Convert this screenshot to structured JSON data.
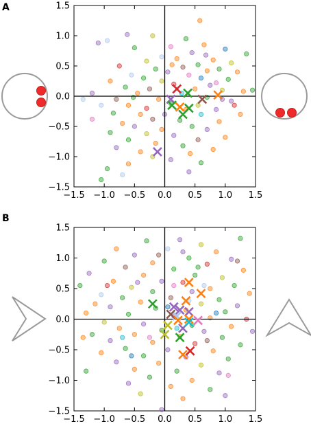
{
  "palette": [
    "#1f77b4",
    "#ff7f0e",
    "#2ca02c",
    "#d62728",
    "#9467bd",
    "#8c564b",
    "#e377c2",
    "#bcbd22",
    "#17becf",
    "#aec7e8"
  ],
  "icons": {
    "panelA_left": "circle-with-two-dots-vertical-icon",
    "panelA_right": "circle-with-two-dots-horizontal-icon",
    "panelB_left": "right-pointing-chevron-arrow-icon",
    "panelB_right": "up-pointing-chevron-arrow-icon"
  },
  "chart_data": [
    {
      "panel_label": "A",
      "type": "scatter",
      "title": "",
      "xlabel": "",
      "ylabel": "",
      "xlim": [
        -1.5,
        1.5
      ],
      "ylim": [
        -1.5,
        1.5
      ],
      "xticks": [
        "−1.5",
        "−1.0",
        "−0.5",
        "0.0",
        "0.5",
        "1.0",
        "1.5"
      ],
      "yticks": [
        "1.5",
        "1.0",
        "0.5",
        "0.0",
        "−0.5",
        "−1.0",
        "−1.5"
      ],
      "grid": false,
      "points": [
        {
          "x": -0.62,
          "y": 1.02,
          "c": 4
        },
        {
          "x": -0.2,
          "y": 1.0,
          "c": 7
        },
        {
          "x": 0.58,
          "y": 1.25,
          "c": 1
        },
        {
          "x": 0.35,
          "y": 0.95,
          "c": 2
        },
        {
          "x": -0.95,
          "y": 0.92,
          "c": 9
        },
        {
          "x": -1.1,
          "y": 0.88,
          "c": 4
        },
        {
          "x": -0.5,
          "y": 0.8,
          "c": 2
        },
        {
          "x": 0.1,
          "y": 0.82,
          "c": 6
        },
        {
          "x": 0.65,
          "y": 0.85,
          "c": 1
        },
        {
          "x": 1.0,
          "y": 0.78,
          "c": 0
        },
        {
          "x": 1.35,
          "y": 0.7,
          "c": 2
        },
        {
          "x": 0.45,
          "y": 0.72,
          "c": 4
        },
        {
          "x": 0.2,
          "y": 0.62,
          "c": 1
        },
        {
          "x": -0.3,
          "y": 0.58,
          "c": 7
        },
        {
          "x": 0.8,
          "y": 0.6,
          "c": 1
        },
        {
          "x": 1.1,
          "y": 0.55,
          "c": 7
        },
        {
          "x": 0.55,
          "y": 0.52,
          "c": 2
        },
        {
          "x": -0.75,
          "y": 0.5,
          "c": 3
        },
        {
          "x": 0.3,
          "y": 0.48,
          "c": 5
        },
        {
          "x": 0.9,
          "y": 0.45,
          "c": 2
        },
        {
          "x": 0.7,
          "y": 0.42,
          "c": 1
        },
        {
          "x": -0.15,
          "y": 0.45,
          "c": 2
        },
        {
          "x": 0.05,
          "y": 0.4,
          "c": 4
        },
        {
          "x": 1.2,
          "y": 0.4,
          "c": 1
        },
        {
          "x": -0.55,
          "y": 0.35,
          "c": 9
        },
        {
          "x": 0.4,
          "y": 0.35,
          "c": 6
        },
        {
          "x": -0.35,
          "y": 0.3,
          "c": 2
        },
        {
          "x": 0.6,
          "y": 0.3,
          "c": 0
        },
        {
          "x": 1.05,
          "y": 0.28,
          "c": 2
        },
        {
          "x": -0.9,
          "y": 0.25,
          "c": 1
        },
        {
          "x": -0.05,
          "y": 0.25,
          "c": 7
        },
        {
          "x": 0.15,
          "y": 0.2,
          "c": 3
        },
        {
          "x": 0.75,
          "y": 0.18,
          "c": 4
        },
        {
          "x": -0.65,
          "y": 0.15,
          "c": 2
        },
        {
          "x": -0.25,
          "y": 0.12,
          "c": 5
        },
        {
          "x": 0.5,
          "y": 0.12,
          "c": 1
        },
        {
          "x": 0.95,
          "y": 0.1,
          "c": 7
        },
        {
          "x": 1.3,
          "y": 0.08,
          "c": 1
        },
        {
          "x": -1.2,
          "y": 0.05,
          "c": 4
        },
        {
          "x": -0.45,
          "y": 0.05,
          "c": 1
        },
        {
          "x": 0.28,
          "y": 0.05,
          "c": 8
        },
        {
          "x": 0.7,
          "y": -0.02,
          "c": 2
        },
        {
          "x": -0.8,
          "y": -0.05,
          "c": 5
        },
        {
          "x": -0.1,
          "y": -0.05,
          "c": 1
        },
        {
          "x": 1.1,
          "y": -0.08,
          "c": 4
        },
        {
          "x": -1.05,
          "y": -0.15,
          "c": 9
        },
        {
          "x": -0.6,
          "y": -0.15,
          "c": 1
        },
        {
          "x": 0.1,
          "y": -0.12,
          "c": 2
        },
        {
          "x": 0.55,
          "y": -0.15,
          "c": 7
        },
        {
          "x": -0.3,
          "y": -0.2,
          "c": 3
        },
        {
          "x": 0.35,
          "y": -0.22,
          "c": 1
        },
        {
          "x": 0.85,
          "y": -0.22,
          "c": 4
        },
        {
          "x": -0.85,
          "y": -0.28,
          "c": 2
        },
        {
          "x": -0.4,
          "y": -0.3,
          "c": 1
        },
        {
          "x": 0.0,
          "y": -0.3,
          "c": 4
        },
        {
          "x": 0.6,
          "y": -0.3,
          "c": 8
        },
        {
          "x": 1.25,
          "y": -0.3,
          "c": 1
        },
        {
          "x": -1.2,
          "y": -0.38,
          "c": 6
        },
        {
          "x": -0.2,
          "y": -0.38,
          "c": 5
        },
        {
          "x": 0.25,
          "y": -0.4,
          "c": 2
        },
        {
          "x": 0.9,
          "y": -0.42,
          "c": 1
        },
        {
          "x": -0.7,
          "y": -0.45,
          "c": 1
        },
        {
          "x": -0.5,
          "y": -0.5,
          "c": 4
        },
        {
          "x": 0.45,
          "y": -0.5,
          "c": 2
        },
        {
          "x": -0.05,
          "y": -0.55,
          "c": 1
        },
        {
          "x": 0.7,
          "y": -0.55,
          "c": 4
        },
        {
          "x": -0.9,
          "y": -0.6,
          "c": 2
        },
        {
          "x": -0.3,
          "y": -0.62,
          "c": 7
        },
        {
          "x": 0.15,
          "y": -0.65,
          "c": 4
        },
        {
          "x": 1.0,
          "y": -0.68,
          "c": 1
        },
        {
          "x": -0.6,
          "y": -0.72,
          "c": 2
        },
        {
          "x": 0.55,
          "y": -0.72,
          "c": 5
        },
        {
          "x": -0.15,
          "y": -0.78,
          "c": 1
        },
        {
          "x": 0.3,
          "y": -0.82,
          "c": 2
        },
        {
          "x": -0.8,
          "y": -0.85,
          "c": 4
        },
        {
          "x": 0.8,
          "y": -0.88,
          "c": 1
        },
        {
          "x": -0.4,
          "y": -0.92,
          "c": 1
        },
        {
          "x": -0.2,
          "y": -1.0,
          "c": 7
        },
        {
          "x": 0.1,
          "y": -1.05,
          "c": 4
        },
        {
          "x": 0.6,
          "y": -1.1,
          "c": 2
        },
        {
          "x": -0.6,
          "y": -1.12,
          "c": 1
        },
        {
          "x": -0.95,
          "y": -1.2,
          "c": 2
        },
        {
          "x": -0.7,
          "y": -1.3,
          "c": 9
        },
        {
          "x": -1.05,
          "y": -1.38,
          "c": 2
        },
        {
          "x": 0.4,
          "y": -1.25,
          "c": 4
        },
        {
          "x": 1.15,
          "y": -0.15,
          "c": 3
        },
        {
          "x": 1.45,
          "y": 0.1,
          "c": 2
        },
        {
          "x": -0.05,
          "y": 0.65,
          "c": 9
        },
        {
          "x": 0.12,
          "y": 0.52,
          "c": 1
        },
        {
          "x": 0.85,
          "y": 0.22,
          "c": 6
        },
        {
          "x": -1.35,
          "y": -0.05,
          "c": 9
        },
        {
          "x": 0.42,
          "y": -0.95,
          "c": 1
        },
        {
          "x": 0.95,
          "y": -0.05,
          "c": 4
        },
        {
          "x": -0.52,
          "y": -0.02,
          "c": 2
        },
        {
          "x": 0.68,
          "y": 0.68,
          "c": 4
        }
      ],
      "markers": [
        {
          "x": 0.2,
          "y": 0.12,
          "c": 3
        },
        {
          "x": 0.38,
          "y": 0.05,
          "c": 2
        },
        {
          "x": 0.1,
          "y": -0.05,
          "c": 4
        },
        {
          "x": 0.25,
          "y": -0.18,
          "c": 1
        },
        {
          "x": 0.12,
          "y": -0.15,
          "c": 2
        },
        {
          "x": 0.4,
          "y": -0.2,
          "c": 2
        },
        {
          "x": 0.62,
          "y": -0.05,
          "c": 5
        },
        {
          "x": 0.88,
          "y": 0.02,
          "c": 1
        },
        {
          "x": 0.3,
          "y": -0.3,
          "c": 2
        },
        {
          "x": -0.12,
          "y": -0.92,
          "c": 4
        }
      ]
    },
    {
      "panel_label": "B",
      "type": "scatter",
      "title": "",
      "xlabel": "",
      "ylabel": "",
      "xlim": [
        -1.5,
        1.5
      ],
      "ylim": [
        -1.5,
        1.5
      ],
      "xticks": [
        "−1.5",
        "−1.0",
        "−0.5",
        "0.0",
        "0.5",
        "1.0",
        "1.5"
      ],
      "yticks": [
        "1.5",
        "1.0",
        "0.5",
        "0.0",
        "−0.5",
        "−1.0",
        "−1.5"
      ],
      "grid": false,
      "points": [
        {
          "x": -0.3,
          "y": 1.28,
          "c": 2
        },
        {
          "x": 0.25,
          "y": 1.3,
          "c": 4
        },
        {
          "x": 0.6,
          "y": 1.22,
          "c": 7
        },
        {
          "x": 1.25,
          "y": 1.32,
          "c": 2
        },
        {
          "x": -0.8,
          "y": 1.15,
          "c": 1
        },
        {
          "x": 0.05,
          "y": 1.15,
          "c": 9
        },
        {
          "x": 0.85,
          "y": 1.1,
          "c": 1
        },
        {
          "x": -0.5,
          "y": 1.05,
          "c": 4
        },
        {
          "x": 0.4,
          "y": 1.0,
          "c": 2
        },
        {
          "x": 1.1,
          "y": 0.98,
          "c": 4
        },
        {
          "x": -1.0,
          "y": 0.95,
          "c": 2
        },
        {
          "x": -0.2,
          "y": 0.92,
          "c": 1
        },
        {
          "x": 0.7,
          "y": 0.9,
          "c": 3
        },
        {
          "x": -0.65,
          "y": 0.85,
          "c": 5
        },
        {
          "x": 0.15,
          "y": 0.82,
          "c": 2
        },
        {
          "x": 1.3,
          "y": 0.8,
          "c": 1
        },
        {
          "x": -1.25,
          "y": 0.75,
          "c": 4
        },
        {
          "x": -0.35,
          "y": 0.72,
          "c": 1
        },
        {
          "x": 0.5,
          "y": 0.72,
          "c": 2
        },
        {
          "x": 0.95,
          "y": 0.68,
          "c": 7
        },
        {
          "x": -0.85,
          "y": 0.62,
          "c": 1
        },
        {
          "x": -0.05,
          "y": 0.62,
          "c": 4
        },
        {
          "x": 0.3,
          "y": 0.6,
          "c": 3
        },
        {
          "x": 1.15,
          "y": 0.55,
          "c": 2
        },
        {
          "x": -1.4,
          "y": 0.55,
          "c": 2
        },
        {
          "x": -0.55,
          "y": 0.52,
          "c": 7
        },
        {
          "x": 0.75,
          "y": 0.5,
          "c": 1
        },
        {
          "x": -0.2,
          "y": 0.45,
          "c": 2
        },
        {
          "x": 0.45,
          "y": 0.45,
          "c": 4
        },
        {
          "x": 1.4,
          "y": 0.42,
          "c": 1
        },
        {
          "x": -1.05,
          "y": 0.4,
          "c": 9
        },
        {
          "x": -0.7,
          "y": 0.35,
          "c": 2
        },
        {
          "x": 0.1,
          "y": 0.35,
          "c": 5
        },
        {
          "x": 0.9,
          "y": 0.32,
          "c": 2
        },
        {
          "x": -0.4,
          "y": 0.28,
          "c": 1
        },
        {
          "x": 0.6,
          "y": 0.25,
          "c": 7
        },
        {
          "x": 1.2,
          "y": 0.22,
          "c": 4
        },
        {
          "x": -0.9,
          "y": 0.2,
          "c": 4
        },
        {
          "x": -0.15,
          "y": 0.18,
          "c": 2
        },
        {
          "x": 0.35,
          "y": 0.15,
          "c": 1
        },
        {
          "x": 1.0,
          "y": 0.12,
          "c": 2
        },
        {
          "x": -1.3,
          "y": 0.1,
          "c": 1
        },
        {
          "x": -0.6,
          "y": 0.08,
          "c": 2
        },
        {
          "x": 0.15,
          "y": 0.05,
          "c": 4
        },
        {
          "x": 0.75,
          "y": 0.02,
          "c": 1
        },
        {
          "x": 1.35,
          "y": 0.0,
          "c": 3
        },
        {
          "x": -1.0,
          "y": -0.05,
          "c": 7
        },
        {
          "x": -0.35,
          "y": -0.08,
          "c": 4
        },
        {
          "x": 0.45,
          "y": -0.1,
          "c": 2
        },
        {
          "x": 1.1,
          "y": -0.12,
          "c": 1
        },
        {
          "x": -0.75,
          "y": -0.15,
          "c": 1
        },
        {
          "x": -0.05,
          "y": -0.18,
          "c": 2
        },
        {
          "x": 0.65,
          "y": -0.2,
          "c": 4
        },
        {
          "x": -1.2,
          "y": -0.25,
          "c": 2
        },
        {
          "x": -0.5,
          "y": -0.25,
          "c": 1
        },
        {
          "x": 0.25,
          "y": -0.28,
          "c": 7
        },
        {
          "x": 0.95,
          "y": -0.3,
          "c": 2
        },
        {
          "x": -0.9,
          "y": -0.35,
          "c": 4
        },
        {
          "x": -0.2,
          "y": -0.38,
          "c": 1
        },
        {
          "x": 0.5,
          "y": -0.4,
          "c": 3
        },
        {
          "x": 1.25,
          "y": -0.42,
          "c": 2
        },
        {
          "x": -0.65,
          "y": -0.48,
          "c": 2
        },
        {
          "x": 0.05,
          "y": -0.5,
          "c": 4
        },
        {
          "x": 0.8,
          "y": -0.52,
          "c": 1
        },
        {
          "x": -1.05,
          "y": -0.55,
          "c": 1
        },
        {
          "x": -0.35,
          "y": -0.6,
          "c": 2
        },
        {
          "x": 0.35,
          "y": -0.62,
          "c": 4
        },
        {
          "x": 1.05,
          "y": -0.65,
          "c": 2
        },
        {
          "x": -0.8,
          "y": -0.7,
          "c": 4
        },
        {
          "x": -0.1,
          "y": -0.72,
          "c": 1
        },
        {
          "x": 0.6,
          "y": -0.75,
          "c": 7
        },
        {
          "x": -0.5,
          "y": -0.82,
          "c": 1
        },
        {
          "x": 0.2,
          "y": -0.85,
          "c": 2
        },
        {
          "x": 0.9,
          "y": -0.88,
          "c": 4
        },
        {
          "x": -0.25,
          "y": -0.95,
          "c": 2
        },
        {
          "x": 0.45,
          "y": -1.0,
          "c": 1
        },
        {
          "x": -0.6,
          "y": -1.05,
          "c": 4
        },
        {
          "x": 0.1,
          "y": -1.1,
          "c": 1
        },
        {
          "x": 0.75,
          "y": -1.15,
          "c": 2
        },
        {
          "x": -0.4,
          "y": -1.22,
          "c": 7
        },
        {
          "x": 1.0,
          "y": -1.25,
          "c": 4
        },
        {
          "x": -0.05,
          "y": -1.48,
          "c": 4
        },
        {
          "x": 0.3,
          "y": -1.3,
          "c": 1
        },
        {
          "x": -1.3,
          "y": -0.85,
          "c": 2
        },
        {
          "x": -1.15,
          "y": 0.25,
          "c": 1
        },
        {
          "x": 1.45,
          "y": -0.2,
          "c": 4
        },
        {
          "x": 0.55,
          "y": 0.85,
          "c": 2
        },
        {
          "x": -0.45,
          "y": 0.6,
          "c": 4
        },
        {
          "x": 0.2,
          "y": -0.15,
          "c": 8
        },
        {
          "x": 0.4,
          "y": 0.3,
          "c": 9
        },
        {
          "x": -0.25,
          "y": -0.3,
          "c": 6
        },
        {
          "x": 0.7,
          "y": -0.35,
          "c": 5
        },
        {
          "x": -0.7,
          "y": -0.3,
          "c": 8
        },
        {
          "x": 0.15,
          "y": 0.55,
          "c": 6
        },
        {
          "x": -0.95,
          "y": 0.55,
          "c": 3
        },
        {
          "x": 1.2,
          "y": 0.95,
          "c": 5
        },
        {
          "x": 0.85,
          "y": 0.1,
          "c": 0
        },
        {
          "x": -0.55,
          "y": -0.6,
          "c": 0
        },
        {
          "x": 0.05,
          "y": 0.2,
          "c": 0
        },
        {
          "x": -0.1,
          "y": 1.05,
          "c": 5
        },
        {
          "x": 0.65,
          "y": 0.55,
          "c": 9
        },
        {
          "x": 1.05,
          "y": -0.92,
          "c": 6
        },
        {
          "x": -1.35,
          "y": -0.3,
          "c": 1
        },
        {
          "x": 0.3,
          "y": 1.1,
          "c": 4
        }
      ],
      "markers": [
        {
          "x": 0.4,
          "y": 0.6,
          "c": 1
        },
        {
          "x": 0.6,
          "y": 0.42,
          "c": 1
        },
        {
          "x": 0.35,
          "y": 0.3,
          "c": 1
        },
        {
          "x": 0.15,
          "y": 0.2,
          "c": 4
        },
        {
          "x": 0.25,
          "y": 0.15,
          "c": 4
        },
        {
          "x": 0.4,
          "y": 0.12,
          "c": 4
        },
        {
          "x": -0.2,
          "y": 0.25,
          "c": 2
        },
        {
          "x": 0.2,
          "y": 0.05,
          "c": 9
        },
        {
          "x": 0.1,
          "y": 0.08,
          "c": 5
        },
        {
          "x": 0.4,
          "y": 0.0,
          "c": 1
        },
        {
          "x": 0.22,
          "y": -0.02,
          "c": 1
        },
        {
          "x": 0.05,
          "y": -0.1,
          "c": 7
        },
        {
          "x": 0.3,
          "y": -0.15,
          "c": 4
        },
        {
          "x": 0.4,
          "y": -0.05,
          "c": 8
        },
        {
          "x": 0.55,
          "y": -0.02,
          "c": 6
        },
        {
          "x": 0.25,
          "y": -0.3,
          "c": 2
        },
        {
          "x": 0.3,
          "y": -0.58,
          "c": 1
        },
        {
          "x": 0.42,
          "y": -0.52,
          "c": 3
        },
        {
          "x": 0.0,
          "y": -0.25,
          "c": 7
        }
      ]
    }
  ]
}
